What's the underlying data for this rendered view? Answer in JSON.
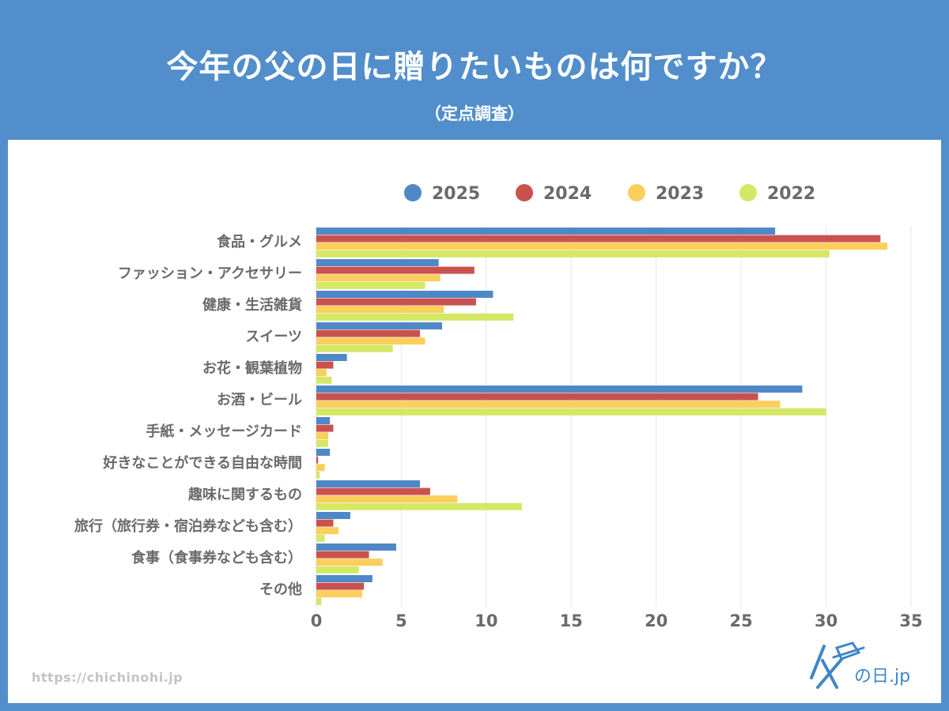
{
  "header": {
    "title": "今年の父の日に贈りたいものは何ですか？",
    "subtitle": "（定点調査）"
  },
  "footer": {
    "url": "https://chichinohi.jp",
    "logo_text": "の日.jp",
    "logo_icon": "father-hat-logo-icon"
  },
  "colors": {
    "background": "#528ecb",
    "panel": "#ffffff",
    "text": "#6a6a6a",
    "grid": "#e3e3e3"
  },
  "chart_data": {
    "type": "bar",
    "orientation": "horizontal",
    "title": "今年の父の日に贈りたいものは何ですか？",
    "subtitle": "（定点調査）",
    "xlabel": "",
    "ylabel": "",
    "xlim": [
      0,
      35
    ],
    "xticks": [
      0,
      5,
      10,
      15,
      20,
      25,
      30,
      35
    ],
    "grid": true,
    "legend_position": "top",
    "categories": [
      "食品・グルメ",
      "ファッション・アクセサリー",
      "健康・生活雑貨",
      "スイーツ",
      "お花・観葉植物",
      "お酒・ビール",
      "手紙・メッセージカード",
      "好きなことができる自由な時間",
      "趣味に関するもの",
      "旅行（旅行券・宿泊券なども含む）",
      "食事（食事券なども含む）",
      "その他"
    ],
    "series": [
      {
        "name": "2025",
        "color": "#4f88c6",
        "values": [
          27.0,
          7.2,
          10.4,
          7.4,
          1.8,
          28.6,
          0.8,
          0.8,
          6.1,
          2.0,
          4.7,
          3.3
        ]
      },
      {
        "name": "2024",
        "color": "#c9524f",
        "values": [
          33.2,
          9.3,
          9.4,
          6.1,
          1.0,
          26.0,
          1.0,
          0.1,
          6.7,
          1.0,
          3.1,
          2.8
        ]
      },
      {
        "name": "2023",
        "color": "#fbcf5d",
        "values": [
          33.6,
          7.3,
          7.5,
          6.4,
          0.6,
          27.3,
          0.7,
          0.5,
          8.3,
          1.3,
          3.9,
          2.7
        ]
      },
      {
        "name": "2022",
        "color": "#d4e865",
        "values": [
          30.2,
          6.4,
          11.6,
          4.5,
          0.9,
          30.0,
          0.7,
          0.2,
          12.1,
          0.5,
          2.5,
          0.3
        ]
      }
    ]
  }
}
